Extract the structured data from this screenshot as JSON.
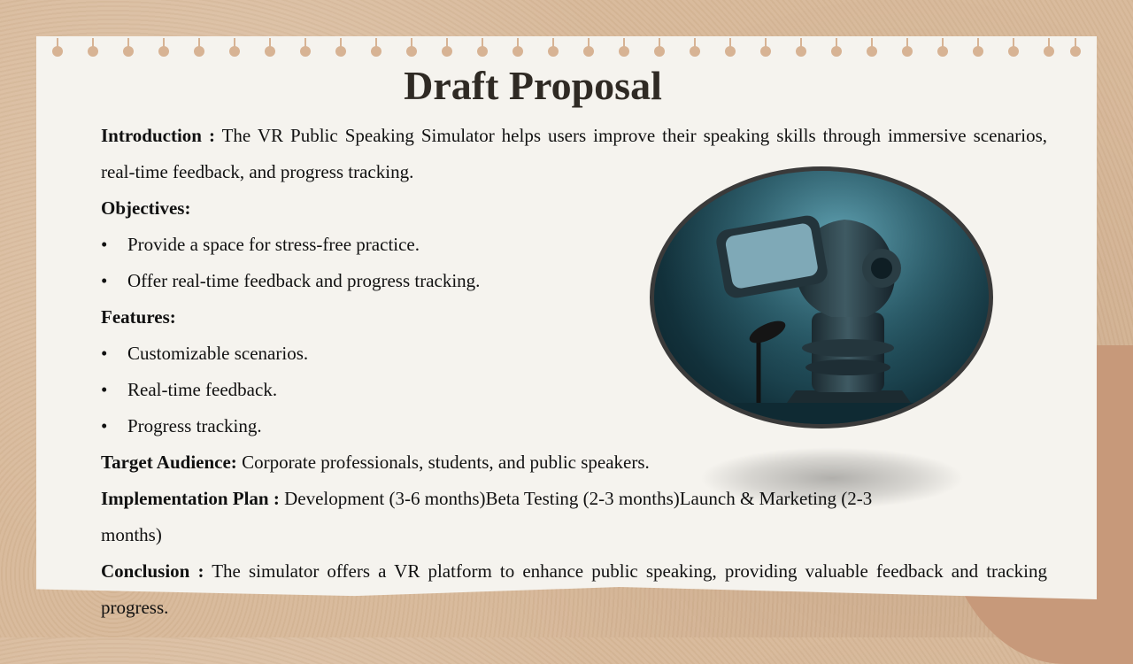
{
  "slide": {
    "title": "Draft Proposal",
    "introduction": {
      "label": "Introduction :",
      "text": " The VR Public Speaking Simulator helps users improve their speaking skills through immersive scenarios, real-time feedback, and progress tracking."
    },
    "objectives": {
      "heading": "Objectives:",
      "items": [
        "Provide a space for stress-free practice.",
        "Offer real-time feedback and progress tracking."
      ]
    },
    "features": {
      "heading": "Features:",
      "items": [
        "Customizable scenarios.",
        "Real-time feedback.",
        "Progress tracking."
      ]
    },
    "target_audience": {
      "label": "Target Audience:",
      "text": " Corporate professionals, students, and public speakers."
    },
    "implementation_plan": {
      "label": "Implementation Plan :",
      "text": " Development (3-6 months)Beta Testing (2-3 months)Launch & Marketing (2-3 months)"
    },
    "conclusion": {
      "label": "Conclusion :",
      "text": " The simulator offers a VR platform to enhance public speaking, providing valuable feedback and tracking progress."
    },
    "bullet_glyph": "•",
    "colors": {
      "background": "#d8b99a",
      "paper": "#f5f3ee",
      "title": "#2f2a24",
      "photo_frame": "#3a3a3a",
      "photo_teal": "#2a5e6c"
    }
  }
}
